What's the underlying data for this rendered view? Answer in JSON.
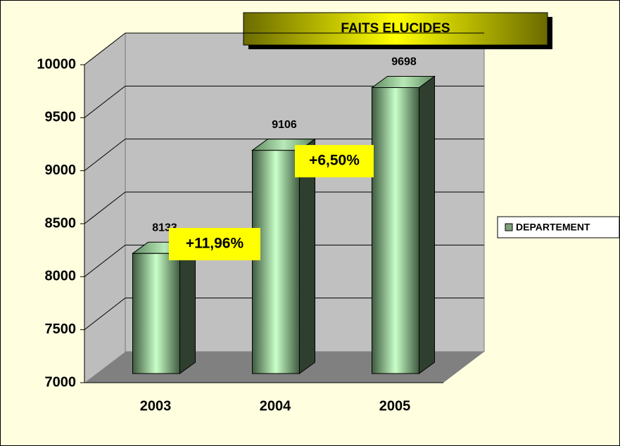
{
  "chart_data": {
    "type": "bar3d",
    "title": "FAITS ELUCIDES",
    "categories": [
      "2003",
      "2004",
      "2005"
    ],
    "series": [
      {
        "name": "DEPARTEMENT",
        "color": "#7fa07f",
        "values": [
          8133,
          9106,
          9698
        ]
      }
    ],
    "ylim": [
      7000,
      10000
    ],
    "yticks": [
      7000,
      7500,
      8000,
      8500,
      9000,
      9500,
      10000
    ],
    "grid": true,
    "legend": "right",
    "annotations": [
      "+11,96%",
      "+6,50%"
    ]
  }
}
